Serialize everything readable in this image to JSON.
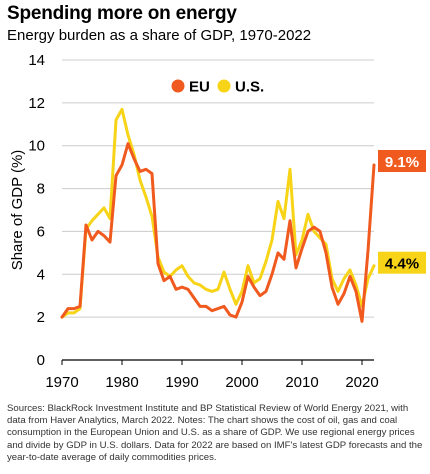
{
  "title": "Spending more on energy",
  "subtitle": "Energy burden as a share of GDP, 1970-2022",
  "notes": "Sources: BlackRock Investment Institute and BP Statistical Review of World Energy 2021, with data from Haver Analytics, March 2022. Notes: The chart shows the cost of oil, gas and coal consumption in the European Union and U.S. as a share of GDP. We use regional energy prices and divide by GDP in U.S. dollars. Data for 2022 are based on IMF's latest GDP forecasts and the year-to-date average of daily commodities prices.",
  "colors": {
    "eu": "#f05a1e",
    "us": "#f7d417",
    "grid": "#cccccc",
    "axis": "#000000"
  },
  "chart_data": {
    "type": "line",
    "ylabel": "Share of GDP (%)",
    "xlabel": "",
    "xlim": [
      1970,
      2022
    ],
    "ylim": [
      0,
      14
    ],
    "yticks": [
      0,
      2,
      4,
      6,
      8,
      10,
      12,
      14
    ],
    "xticks": [
      1970,
      1980,
      1990,
      2000,
      2010,
      2020
    ],
    "grid": true,
    "legend": "top",
    "x": [
      1970,
      1971,
      1972,
      1973,
      1974,
      1975,
      1976,
      1977,
      1978,
      1979,
      1980,
      1981,
      1982,
      1983,
      1984,
      1985,
      1986,
      1987,
      1988,
      1989,
      1990,
      1991,
      1992,
      1993,
      1994,
      1995,
      1996,
      1997,
      1998,
      1999,
      2000,
      2001,
      2002,
      2003,
      2004,
      2005,
      2006,
      2007,
      2008,
      2009,
      2010,
      2011,
      2012,
      2013,
      2014,
      2015,
      2016,
      2017,
      2018,
      2019,
      2020,
      2021,
      2022
    ],
    "series": [
      {
        "name": "EU",
        "color": "#f05a1e",
        "end_label": "9.1%",
        "values": [
          2.0,
          2.4,
          2.4,
          2.5,
          6.3,
          5.6,
          6.0,
          5.8,
          5.5,
          8.6,
          9.1,
          10.1,
          9.4,
          8.8,
          8.9,
          8.7,
          4.5,
          3.7,
          3.9,
          3.3,
          3.4,
          3.3,
          2.9,
          2.5,
          2.5,
          2.3,
          2.4,
          2.5,
          2.1,
          2.0,
          2.7,
          3.9,
          3.4,
          3.0,
          3.2,
          4.0,
          5.0,
          4.7,
          6.5,
          4.3,
          5.2,
          6.0,
          6.2,
          6.0,
          5.0,
          3.4,
          2.6,
          3.1,
          3.9,
          3.2,
          1.8,
          5.1,
          9.1
        ]
      },
      {
        "name": "U.S.",
        "color": "#f7d417",
        "end_label": "4.4%",
        "values": [
          2.0,
          2.2,
          2.2,
          2.4,
          6.1,
          6.5,
          6.8,
          7.1,
          6.6,
          11.2,
          11.7,
          10.5,
          9.6,
          8.4,
          7.6,
          6.7,
          4.8,
          4.1,
          3.9,
          4.2,
          4.4,
          3.9,
          3.6,
          3.5,
          3.3,
          3.2,
          3.3,
          4.1,
          3.3,
          2.6,
          3.2,
          4.4,
          3.6,
          3.8,
          4.6,
          5.6,
          7.4,
          6.6,
          8.9,
          4.9,
          5.6,
          6.8,
          6.0,
          5.7,
          5.4,
          3.8,
          3.2,
          3.8,
          4.2,
          3.5,
          2.5,
          3.8,
          4.4
        ]
      }
    ]
  }
}
